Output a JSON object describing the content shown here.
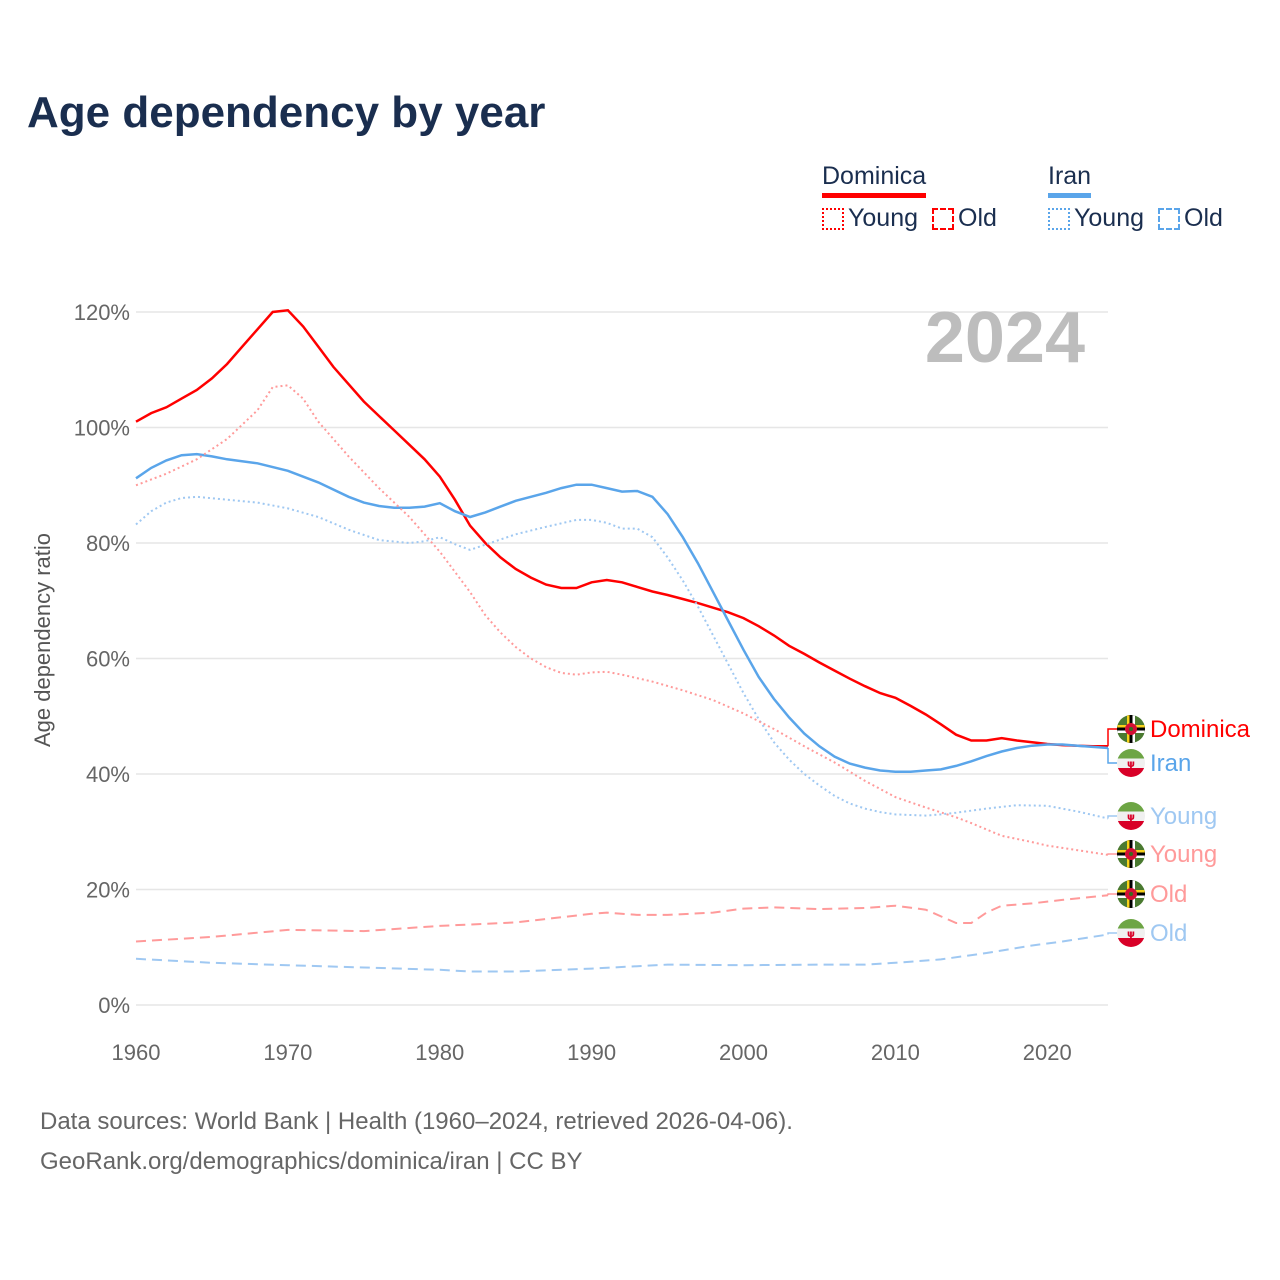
{
  "chart_data": {
    "type": "line",
    "title": "Age dependency by year",
    "ylabel": "Age dependency ratio",
    "xlabel": "",
    "year_watermark": "2024",
    "xlim": [
      1960,
      2024
    ],
    "ylim": [
      0,
      120
    ],
    "x_ticks": [
      "1960",
      "1970",
      "1980",
      "1990",
      "2000",
      "2010",
      "2020"
    ],
    "y_ticks": [
      "0%",
      "20%",
      "40%",
      "60%",
      "80%",
      "100%",
      "120%"
    ],
    "grid": true,
    "legend": {
      "placement": "top-right",
      "groups": [
        {
          "country": "Dominica",
          "color": "#ff0000",
          "items": [
            "Young",
            "Old"
          ]
        },
        {
          "country": "Iran",
          "color": "#5aa5ea",
          "items": [
            "Young",
            "Old"
          ]
        }
      ]
    },
    "series": [
      {
        "name": "Dominica",
        "end_label": "Dominica",
        "flag": "dominica",
        "color": "#ff0000",
        "style": "solid",
        "x": [
          1960,
          1961,
          1962,
          1963,
          1964,
          1965,
          1966,
          1967,
          1968,
          1969,
          1970,
          1971,
          1972,
          1973,
          1974,
          1975,
          1976,
          1977,
          1978,
          1979,
          1980,
          1981,
          1982,
          1983,
          1984,
          1985,
          1986,
          1987,
          1988,
          1989,
          1990,
          1991,
          1992,
          1993,
          1994,
          1995,
          1996,
          1997,
          1998,
          1999,
          2000,
          2001,
          2002,
          2003,
          2004,
          2005,
          2006,
          2007,
          2008,
          2009,
          2010,
          2011,
          2012,
          2013,
          2014,
          2015,
          2016,
          2017,
          2018,
          2019,
          2020,
          2021,
          2022,
          2023,
          2024
        ],
        "y": [
          101,
          102.5,
          103.5,
          105,
          106.5,
          108.5,
          111,
          114,
          117,
          120,
          120.3,
          117.5,
          114,
          110.5,
          107.5,
          104.5,
          102,
          99.5,
          97,
          94.5,
          91.5,
          87.5,
          83,
          80,
          77.5,
          75.5,
          74,
          72.8,
          72.2,
          72.2,
          73.2,
          73.6,
          73.2,
          72.4,
          71.6,
          71,
          70.3,
          69.6,
          68.8,
          68,
          67,
          65.6,
          64,
          62.2,
          60.8,
          59.3,
          57.9,
          56.5,
          55.2,
          54,
          53.2,
          51.8,
          50.3,
          48.6,
          46.8,
          45.8,
          45.8,
          46.2,
          45.8,
          45.5,
          45.2,
          45,
          44.9,
          44.8,
          44.8
        ]
      },
      {
        "name": "Iran",
        "end_label": "Iran",
        "flag": "iran",
        "color": "#5aa5ea",
        "style": "solid",
        "x": [
          1960,
          1961,
          1962,
          1963,
          1964,
          1965,
          1966,
          1968,
          1970,
          1972,
          1974,
          1975,
          1976,
          1977,
          1978,
          1979,
          1980,
          1981,
          1982,
          1983,
          1984,
          1985,
          1986,
          1987,
          1988,
          1989,
          1990,
          1991,
          1992,
          1993,
          1994,
          1995,
          1996,
          1997,
          1998,
          1999,
          2000,
          2001,
          2002,
          2003,
          2004,
          2005,
          2006,
          2007,
          2008,
          2009,
          2010,
          2011,
          2012,
          2013,
          2014,
          2015,
          2016,
          2017,
          2018,
          2019,
          2020,
          2021,
          2022,
          2023,
          2024
        ],
        "y": [
          91.2,
          93,
          94.3,
          95.2,
          95.4,
          95,
          94.5,
          93.8,
          92.5,
          90.5,
          88,
          87,
          86.4,
          86.1,
          86.1,
          86.3,
          86.9,
          85.5,
          84.5,
          85.3,
          86.3,
          87.3,
          88,
          88.7,
          89.5,
          90.1,
          90.1,
          89.5,
          88.9,
          89,
          88,
          85,
          81,
          76.5,
          71.5,
          66.5,
          61.5,
          56.8,
          53,
          49.8,
          47,
          44.8,
          43,
          41.8,
          41.1,
          40.6,
          40.4,
          40.4,
          40.6,
          40.8,
          41.4,
          42.2,
          43.1,
          43.9,
          44.5,
          44.9,
          45.1,
          45.1,
          44.9,
          44.7,
          44.5
        ]
      },
      {
        "name": "Iran Young",
        "end_label": "Young",
        "flag": "iran",
        "color": "#9fc8f2",
        "style": "dotted",
        "x": [
          1960,
          1961,
          1962,
          1963,
          1964,
          1966,
          1968,
          1970,
          1972,
          1974,
          1976,
          1978,
          1979,
          1980,
          1981,
          1982,
          1983,
          1985,
          1987,
          1989,
          1990,
          1991,
          1992,
          1993,
          1994,
          1995,
          1996,
          1997,
          1998,
          1999,
          2000,
          2001,
          2002,
          2003,
          2004,
          2005,
          2006,
          2007,
          2008,
          2009,
          2010,
          2012,
          2013,
          2014,
          2016,
          2018,
          2020,
          2022,
          2024
        ],
        "y": [
          83.2,
          85.5,
          87,
          87.8,
          88,
          87.5,
          87,
          86,
          84.5,
          82.3,
          80.5,
          80,
          80.3,
          81,
          79.8,
          78.8,
          79.7,
          81.5,
          82.8,
          84,
          84,
          83.5,
          82.5,
          82.5,
          81,
          77.5,
          73.5,
          69,
          64,
          59,
          54,
          49.5,
          45.5,
          42.5,
          40,
          38,
          36.2,
          34.9,
          34,
          33.4,
          33,
          32.8,
          33,
          33.3,
          34,
          34.6,
          34.5,
          33.5,
          32.3
        ]
      },
      {
        "name": "Dominica Young",
        "end_label": "Young",
        "flag": "dominica",
        "color": "#ff9a9a",
        "style": "dotted",
        "x": [
          1960,
          1962,
          1964,
          1966,
          1968,
          1969,
          1970,
          1971,
          1972,
          1974,
          1976,
          1978,
          1980,
          1982,
          1983,
          1984,
          1985,
          1986,
          1987,
          1988,
          1989,
          1990,
          1991,
          1992,
          1994,
          1996,
          1998,
          2000,
          2002,
          2004,
          2006,
          2008,
          2010,
          2012,
          2014,
          2015,
          2017,
          2019,
          2020,
          2022,
          2024
        ],
        "y": [
          90,
          92,
          94.5,
          98,
          103,
          107,
          107.3,
          105,
          101,
          95,
          89.5,
          84.5,
          78.5,
          71.5,
          67.5,
          64.5,
          62,
          60,
          58.5,
          57.5,
          57.2,
          57.6,
          57.7,
          57.2,
          56,
          54.5,
          52.8,
          50.5,
          47.8,
          44.8,
          42,
          38.8,
          36,
          34.2,
          32.5,
          31.5,
          29.3,
          28.2,
          27.6,
          26.8,
          26
        ]
      },
      {
        "name": "Dominica Old",
        "end_label": "Old",
        "flag": "dominica",
        "color": "#ff9a9a",
        "style": "dashed",
        "x": [
          1960,
          1965,
          1970,
          1975,
          1980,
          1985,
          1990,
          1991,
          1993,
          1995,
          1998,
          2000,
          2002,
          2005,
          2008,
          2010,
          2012,
          2014,
          2015,
          2016,
          2017,
          2019,
          2021,
          2024
        ],
        "y": [
          11,
          11.8,
          13,
          12.8,
          13.7,
          14.3,
          15.8,
          16,
          15.6,
          15.6,
          16,
          16.7,
          16.9,
          16.6,
          16.8,
          17.2,
          16.5,
          14.2,
          14.2,
          16,
          17.2,
          17.6,
          18.2,
          19
        ]
      },
      {
        "name": "Iran Old",
        "end_label": "Old",
        "flag": "iran",
        "color": "#9fc8f2",
        "style": "dashed",
        "x": [
          1960,
          1965,
          1970,
          1975,
          1980,
          1982,
          1985,
          1990,
          1995,
          2000,
          2005,
          2008,
          2010,
          2013,
          2016,
          2019,
          2021,
          2024
        ],
        "y": [
          8,
          7.3,
          6.9,
          6.5,
          6.1,
          5.8,
          5.8,
          6.3,
          7,
          6.9,
          7,
          7,
          7.3,
          7.9,
          9,
          10.3,
          11,
          12.2
        ]
      }
    ]
  },
  "footer": {
    "line1": "Data sources: World Bank | Health (1960–2024, retrieved 2026-04-06).",
    "line2": "GeoRank.org/demographics/dominica/iran | CC BY"
  }
}
